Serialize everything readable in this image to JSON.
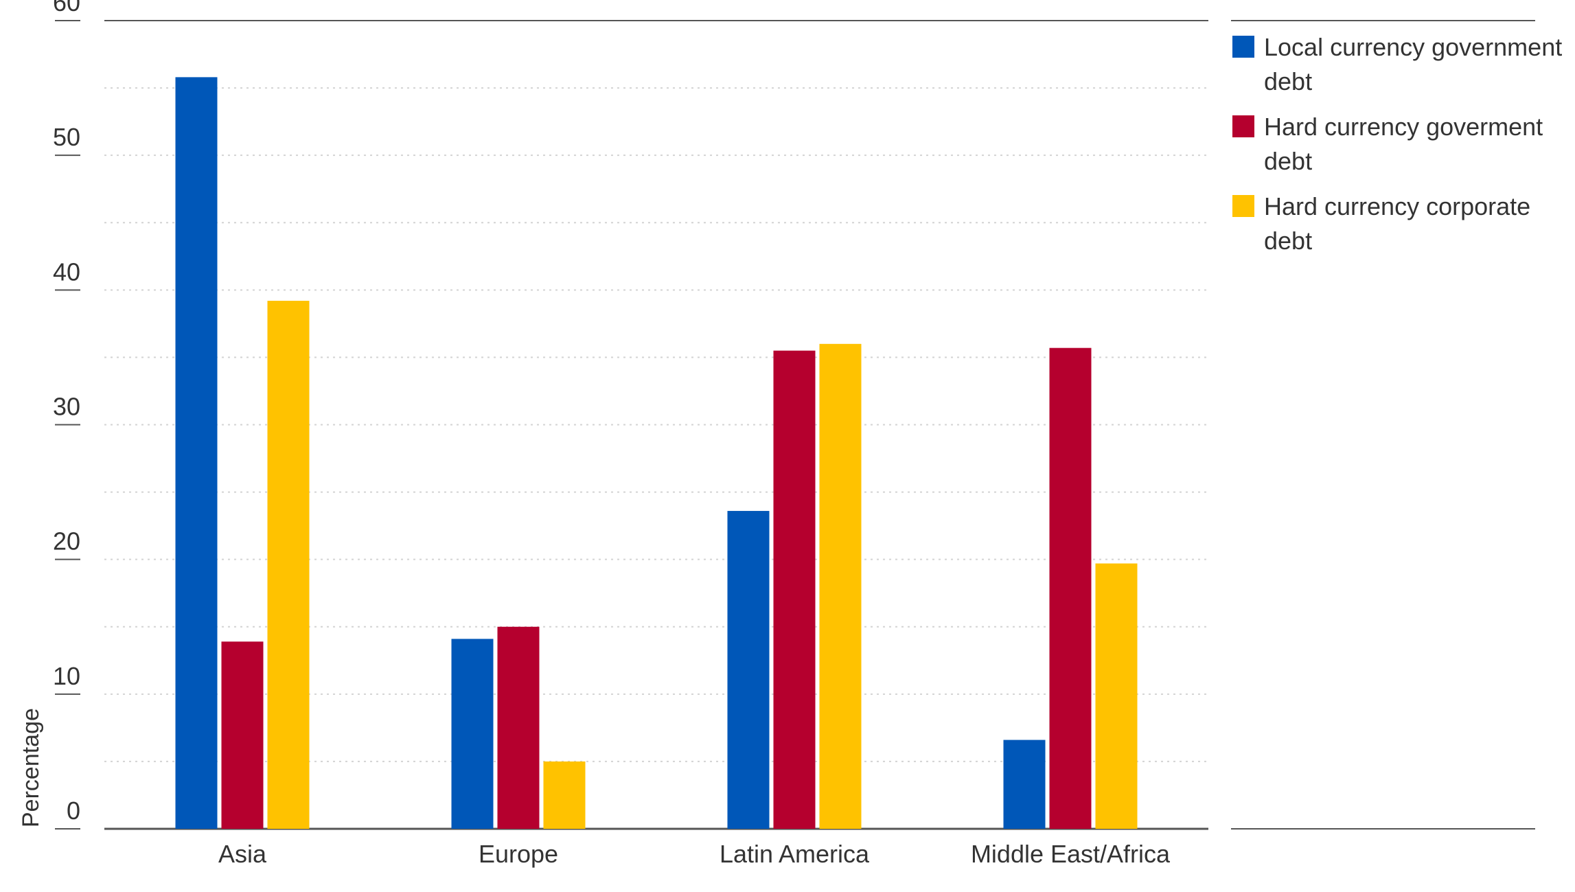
{
  "chart_data": {
    "type": "bar",
    "categories": [
      "Asia",
      "Europe",
      "Latin America",
      "Middle East/Africa"
    ],
    "series": [
      {
        "name": "Local currency government debt",
        "legend_lines": [
          "Local currency government",
          "debt"
        ],
        "color": "#0057B8",
        "values": [
          55.8,
          14.1,
          23.6,
          6.6
        ]
      },
      {
        "name": "Hard currency goverment debt",
        "legend_lines": [
          "Hard currency goverment",
          "debt"
        ],
        "color": "#B5002E",
        "values": [
          13.9,
          15.0,
          35.5,
          35.7
        ]
      },
      {
        "name": "Hard currency corporate debt",
        "legend_lines": [
          "Hard currency corporate",
          "debt"
        ],
        "color": "#FFC200",
        "values": [
          39.2,
          5.0,
          36.0,
          19.7
        ]
      }
    ],
    "ylabel": "Percentage",
    "xlabel": "",
    "ylim": [
      0,
      60
    ],
    "y_ticks": [
      "0",
      "10",
      "20",
      "30",
      "40",
      "50",
      "60"
    ],
    "y_tick_values": [
      0,
      10,
      20,
      30,
      40,
      50,
      60
    ],
    "grid": true,
    "legend_position": "right"
  }
}
